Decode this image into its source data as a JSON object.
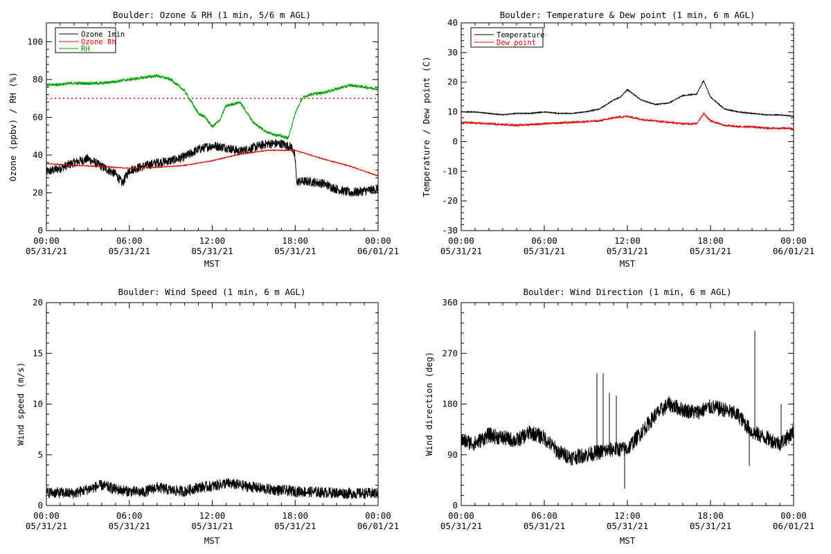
{
  "colors": {
    "black": "#000000",
    "red": "#e00000",
    "green": "#00a000"
  },
  "chart_data": [
    {
      "id": "ozone",
      "type": "line",
      "title": "Boulder: Ozone & RH (1 min, 5/6 m AGL)",
      "ylabel": "Ozone (ppbv) / RH (%)",
      "xlabel": "MST",
      "ylim": [
        0,
        110
      ],
      "yticks": [
        0,
        20,
        40,
        60,
        80,
        100
      ],
      "xlim": [
        0,
        24
      ],
      "xticks": [
        0,
        6,
        12,
        18,
        24
      ],
      "xticklabels": [
        [
          "00:00",
          "05/31/21"
        ],
        [
          "06:00",
          "05/31/21"
        ],
        [
          "12:00",
          "05/31/21"
        ],
        [
          "18:00",
          "05/31/21"
        ],
        [
          "00:00",
          "06/01/21"
        ]
      ],
      "legend": "top-left",
      "reference_line": {
        "y": 70,
        "color": "red",
        "style": "dotted"
      },
      "series": [
        {
          "name": "Ozone 1min",
          "color": "black",
          "noise": 2.5,
          "x": [
            0,
            1,
            2,
            3,
            4,
            5,
            5.5,
            6,
            7,
            8,
            9,
            10,
            11,
            12,
            13,
            14,
            15,
            16,
            17,
            17.8,
            18,
            18.1,
            19,
            20,
            21,
            22,
            23,
            24
          ],
          "y": [
            31,
            33,
            36,
            38,
            34,
            30,
            25,
            32,
            34,
            36,
            37,
            39,
            43,
            45,
            44,
            42,
            44,
            46,
            46,
            44,
            38,
            26,
            26,
            25,
            22,
            20,
            21,
            22
          ]
        },
        {
          "name": "Ozone 8h",
          "color": "red",
          "noise": 0.2,
          "x": [
            0,
            2,
            4,
            6,
            8,
            10,
            12,
            14,
            16,
            18,
            20,
            22,
            24
          ],
          "y": [
            35.5,
            34.5,
            34,
            33,
            33.5,
            34.5,
            37,
            40.5,
            42.5,
            42.5,
            38,
            34,
            29
          ]
        },
        {
          "name": "RH",
          "color": "green",
          "noise": 0.8,
          "x": [
            0,
            2,
            4,
            6,
            7,
            8,
            9,
            10,
            11,
            11.5,
            12,
            12.5,
            13,
            14,
            15,
            16,
            17,
            17.5,
            18,
            18.5,
            19,
            20,
            21,
            22,
            23,
            24
          ],
          "y": [
            77,
            78,
            78,
            80,
            81,
            82,
            80,
            74,
            62,
            60,
            55,
            58,
            66,
            68,
            57,
            52,
            50,
            49,
            62,
            70,
            72,
            73,
            75,
            77,
            76,
            75
          ]
        }
      ]
    },
    {
      "id": "temp",
      "type": "line",
      "title": "Boulder: Temperature & Dew point (1 min, 6 m AGL)",
      "ylabel": "Temperature / Dew point (C)",
      "xlabel": "MST",
      "ylim": [
        -30,
        40
      ],
      "yticks": [
        -30,
        -20,
        -10,
        0,
        10,
        20,
        30,
        40
      ],
      "xlim": [
        0,
        24
      ],
      "xticks": [
        0,
        6,
        12,
        18,
        24
      ],
      "xticklabels": [
        [
          "00:00",
          "05/31/21"
        ],
        [
          "06:00",
          "05/31/21"
        ],
        [
          "12:00",
          "05/31/21"
        ],
        [
          "18:00",
          "05/31/21"
        ],
        [
          "00:00",
          "06/01/21"
        ]
      ],
      "legend": "top-left",
      "series": [
        {
          "name": "Temperature",
          "color": "black",
          "noise": 0.15,
          "x": [
            0,
            1,
            2,
            3,
            4,
            5,
            6,
            7,
            8,
            9,
            10,
            11,
            11.5,
            12,
            13,
            14,
            15,
            16,
            17,
            17.5,
            18,
            19,
            20,
            21,
            22,
            23,
            24
          ],
          "y": [
            10,
            10,
            9.5,
            9,
            9.5,
            9.5,
            10,
            9.5,
            9.5,
            10,
            11,
            14,
            15,
            17.5,
            14,
            12.5,
            13,
            15.5,
            16,
            20.5,
            15,
            11,
            10,
            9.5,
            9,
            9,
            8.5
          ]
        },
        {
          "name": "Dew point",
          "color": "red",
          "noise": 0.3,
          "x": [
            0,
            2,
            4,
            6,
            8,
            10,
            11,
            12,
            13,
            14,
            15,
            16,
            17,
            17.5,
            18,
            19,
            20,
            21,
            22,
            23,
            24
          ],
          "y": [
            6.5,
            6,
            5.5,
            6,
            6.5,
            7,
            8,
            8.5,
            7.5,
            7,
            6.5,
            6,
            6,
            9.5,
            7,
            5.5,
            5,
            5,
            4.5,
            4.5,
            4.5
          ]
        }
      ]
    },
    {
      "id": "wind-speed",
      "type": "line",
      "title": "Boulder: Wind Speed (1 min, 6 m AGL)",
      "ylabel": "Wind speed (m/s)",
      "xlabel": "MST",
      "ylim": [
        0,
        20
      ],
      "yticks": [
        0,
        5,
        10,
        15,
        20
      ],
      "xlim": [
        0,
        24
      ],
      "xticks": [
        0,
        6,
        12,
        18,
        24
      ],
      "xticklabels": [
        [
          "00:00",
          "05/31/21"
        ],
        [
          "06:00",
          "05/31/21"
        ],
        [
          "12:00",
          "05/31/21"
        ],
        [
          "18:00",
          "05/31/21"
        ],
        [
          "00:00",
          "06/01/21"
        ]
      ],
      "series": [
        {
          "name": "",
          "color": "black",
          "noise": 0.55,
          "x": [
            0,
            2,
            4,
            5,
            6,
            7,
            8,
            9,
            10,
            11,
            12,
            13,
            14,
            15,
            16,
            18,
            20,
            22,
            24
          ],
          "y": [
            1.3,
            1.2,
            2.0,
            1.6,
            1.4,
            1.3,
            1.8,
            1.5,
            1.4,
            1.8,
            1.9,
            2.2,
            2.0,
            1.8,
            1.6,
            1.4,
            1.3,
            1.2,
            1.2
          ]
        }
      ]
    },
    {
      "id": "wind-dir",
      "type": "line",
      "title": "Boulder: Wind Direction (1 min, 6 m AGL)",
      "ylabel": "Wind direction (deg)",
      "xlabel": "MST",
      "ylim": [
        0,
        360
      ],
      "yticks": [
        0,
        90,
        180,
        270,
        360
      ],
      "xlim": [
        0,
        24
      ],
      "xticks": [
        0,
        6,
        12,
        18,
        24
      ],
      "xticklabels": [
        [
          "00:00",
          "05/31/21"
        ],
        [
          "06:00",
          "05/31/21"
        ],
        [
          "12:00",
          "05/31/21"
        ],
        [
          "18:00",
          "05/31/21"
        ],
        [
          "00:00",
          "06/01/21"
        ]
      ],
      "series": [
        {
          "name": "",
          "color": "black",
          "noise": 14,
          "x": [
            0,
            1,
            2,
            3,
            4,
            5,
            6,
            7,
            8,
            9,
            10,
            11,
            12,
            13,
            14,
            15,
            16,
            17,
            18,
            19,
            20,
            21,
            22,
            23,
            24
          ],
          "y": [
            115,
            110,
            125,
            120,
            115,
            130,
            120,
            95,
            85,
            90,
            95,
            100,
            100,
            130,
            160,
            180,
            170,
            165,
            175,
            170,
            160,
            130,
            120,
            110,
            130
          ]
        }
      ],
      "spikes": [
        {
          "x": 9.8,
          "y": 235
        },
        {
          "x": 10.25,
          "y": 235
        },
        {
          "x": 10.7,
          "y": 200
        },
        {
          "x": 11.2,
          "y": 195
        },
        {
          "x": 11.8,
          "y": 30
        },
        {
          "x": 21.2,
          "y": 310
        },
        {
          "x": 20.8,
          "y": 70
        },
        {
          "x": 23.1,
          "y": 180
        }
      ]
    }
  ]
}
